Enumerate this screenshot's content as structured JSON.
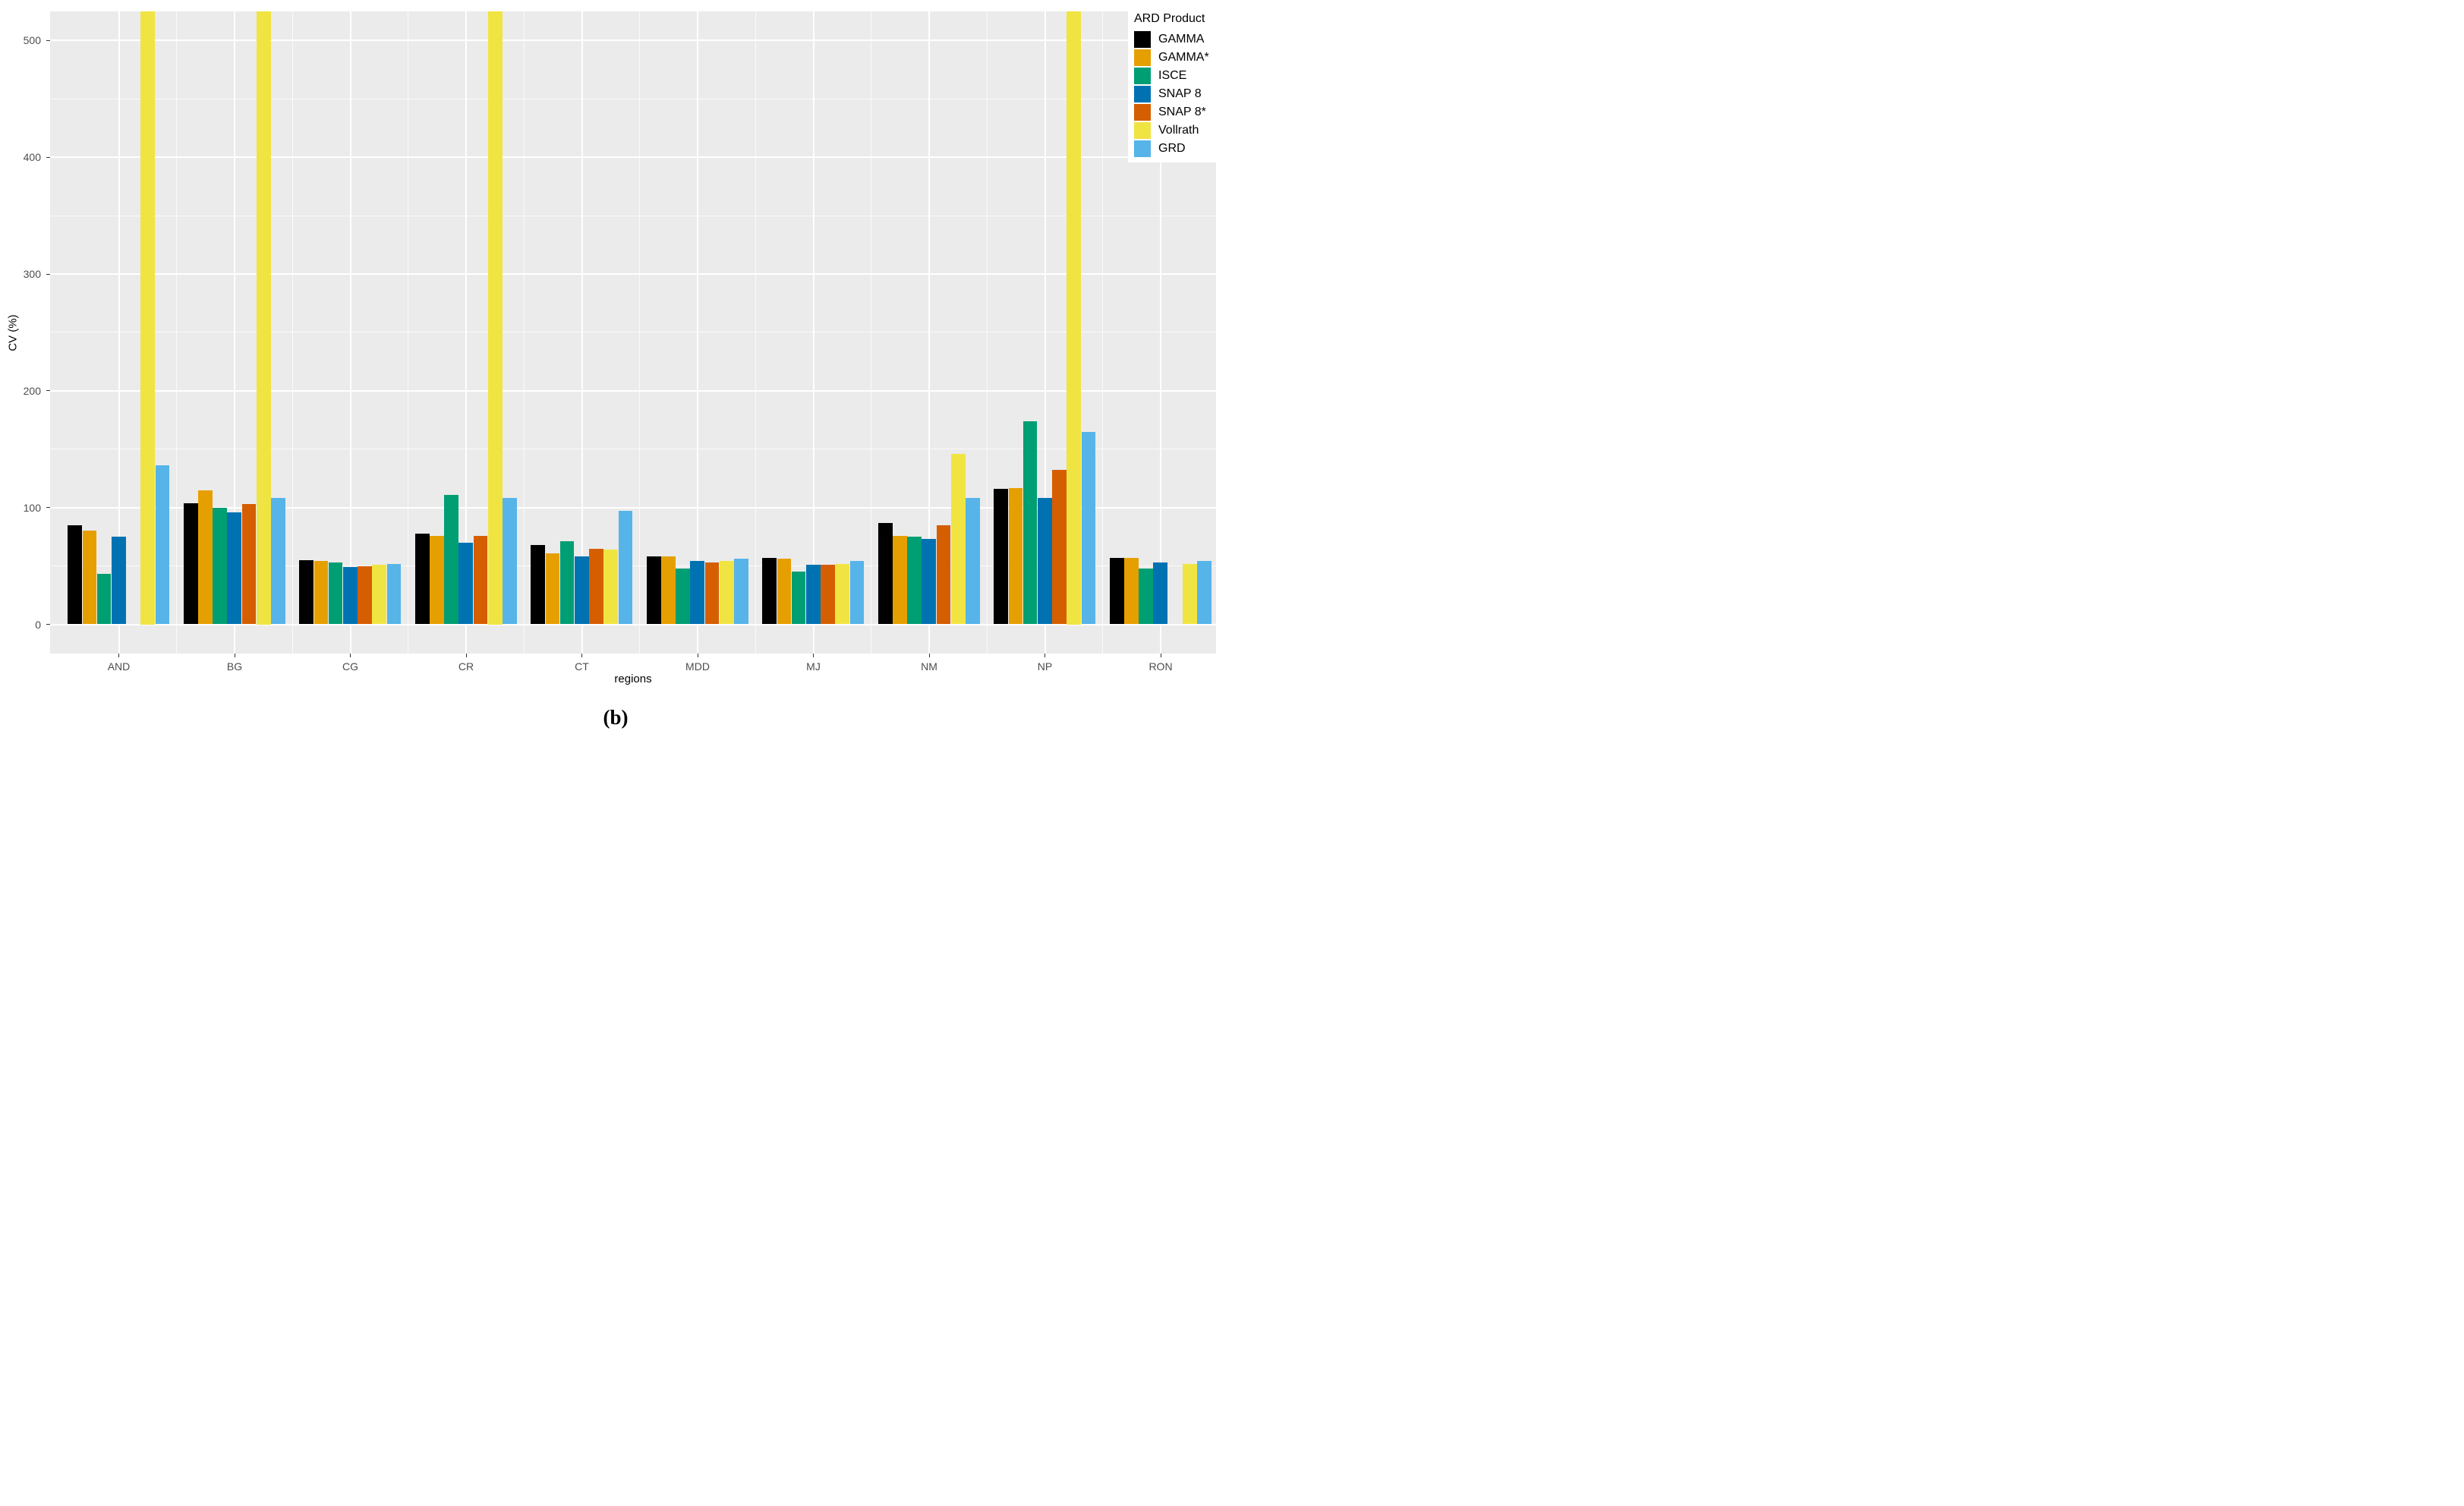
{
  "figure": {
    "caption": "(b)"
  },
  "chart_data": {
    "type": "bar",
    "title": "",
    "xlabel": "regions",
    "ylabel": "CV (%)",
    "ylim": [
      0,
      525
    ],
    "y_major_ticks": [
      0,
      100,
      200,
      300,
      400,
      500
    ],
    "y_minor_ticks": [
      50,
      150,
      250,
      350,
      450
    ],
    "grid": "on",
    "panel_background": "#EBEBEB",
    "gridline_color": "#FFFFFF",
    "tick_text_color": "#4D4D4D",
    "categories": [
      "AND",
      "BG",
      "CG",
      "CR",
      "CT",
      "MDD",
      "MJ",
      "NM",
      "NP",
      "RON"
    ],
    "legend": {
      "title": "ARD Product",
      "position": "top-right-inside"
    },
    "clipped_note": "values marked clipped exceed the visible axis (bar drawn to top of panel, > 525)",
    "series": [
      {
        "name": "GAMMA",
        "color": "#000000",
        "values": [
          85,
          104,
          55,
          78,
          68,
          58,
          57,
          87,
          116,
          57
        ]
      },
      {
        "name": "GAMMA*",
        "color": "#E69F00",
        "values": [
          80,
          115,
          54,
          76,
          61,
          58,
          56,
          76,
          117,
          57
        ]
      },
      {
        "name": "ISCE",
        "color": "#009E73",
        "values": [
          43,
          100,
          53,
          111,
          71,
          48,
          45,
          75,
          174,
          48
        ]
      },
      {
        "name": "SNAP 8",
        "color": "#0072B2",
        "values": [
          75,
          96,
          49,
          70,
          58,
          54,
          51,
          73,
          108,
          53
        ]
      },
      {
        "name": "SNAP 8*",
        "color": "#D55E00",
        "values": [
          null,
          103,
          50,
          76,
          65,
          53,
          51,
          85,
          132,
          null
        ]
      },
      {
        "name": "Vollrath",
        "color": "#F0E442",
        "values": [
          "clipped",
          "clipped",
          51,
          "clipped",
          64,
          54,
          52,
          146,
          "clipped",
          52
        ]
      },
      {
        "name": "GRD",
        "color": "#56B4E9",
        "values": [
          136,
          108,
          52,
          108,
          97,
          56,
          54,
          108,
          165,
          54
        ]
      }
    ]
  }
}
